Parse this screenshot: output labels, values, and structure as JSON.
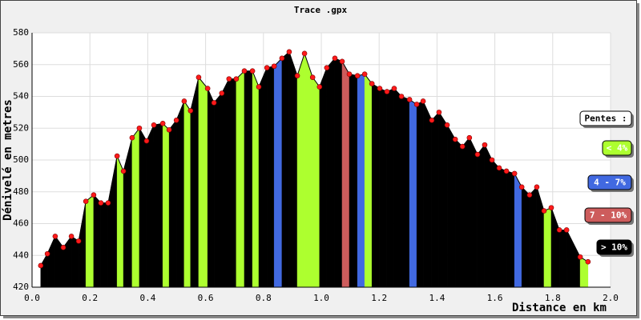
{
  "chart_data": {
    "type": "area",
    "title": "Trace .gpx",
    "x_label": "Distance en km",
    "y_label": "Dénivelé en metres",
    "xlim": [
      0,
      2.0
    ],
    "ylim": [
      420,
      580
    ],
    "xticks": [
      {
        "value": 0,
        "label": "0.0"
      },
      0.2,
      0.4,
      0.6,
      0.8,
      {
        "value": 1,
        "label": "1.0"
      },
      1.2,
      1.4,
      1.6,
      1.8,
      {
        "value": 2,
        "label": "2.0"
      }
    ],
    "yticks": [
      420,
      440,
      460,
      480,
      500,
      520,
      540,
      560,
      580
    ],
    "grid": true,
    "legend_position": "right",
    "marker_color": "#ff1a1a",
    "line_color": "#000000",
    "x": [
      0.03,
      0.053,
      0.08,
      0.108,
      0.136,
      0.161,
      0.186,
      0.213,
      0.238,
      0.263,
      0.294,
      0.316,
      0.346,
      0.371,
      0.396,
      0.421,
      0.452,
      0.474,
      0.499,
      0.526,
      0.548,
      0.576,
      0.607,
      0.629,
      0.656,
      0.681,
      0.706,
      0.734,
      0.762,
      0.784,
      0.812,
      0.837,
      0.864,
      0.889,
      0.917,
      0.942,
      0.97,
      0.994,
      1.019,
      1.047,
      1.072,
      1.097,
      1.125,
      1.15,
      1.175,
      1.202,
      1.227,
      1.252,
      1.277,
      1.305,
      1.33,
      1.352,
      1.382,
      1.407,
      1.435,
      1.463,
      1.488,
      1.512,
      1.54,
      1.565,
      1.59,
      1.615,
      1.64,
      1.668,
      1.693,
      1.72,
      1.745,
      1.77,
      1.795,
      1.823,
      1.848,
      1.895,
      1.922
    ],
    "values": [
      433.6,
      441,
      452,
      445,
      452,
      449,
      474,
      478,
      473,
      473,
      502.5,
      493,
      514,
      520,
      512,
      522,
      523,
      519,
      525,
      537,
      531,
      552,
      545,
      536,
      542,
      551,
      551,
      556,
      556,
      546,
      558,
      559,
      564,
      568,
      553,
      567,
      552,
      546,
      558,
      564,
      562,
      554,
      553,
      554,
      548,
      545,
      543,
      545,
      540,
      538,
      535,
      537,
      525,
      530,
      522,
      513,
      508.5,
      514,
      503.5,
      509.5,
      500,
      495,
      493,
      491.5,
      483,
      478,
      483,
      468,
      470,
      456,
      456,
      439,
      436
    ],
    "segment_colors": [
      "#000000",
      "#000000",
      "#000000",
      "#000000",
      "#000000",
      "#000000",
      "#adff2f",
      "#000000",
      "#000000",
      "#000000",
      "#adff2f",
      "#000000",
      "#adff2f",
      "#000000",
      "#000000",
      "#000000",
      "#adff2f",
      "#000000",
      "#000000",
      "#adff2f",
      "#000000",
      "#adff2f",
      "#000000",
      "#000000",
      "#000000",
      "#000000",
      "#adff2f",
      "#000000",
      "#adff2f",
      "#000000",
      "#000000",
      "#4169e1",
      "#000000",
      "#000000",
      "#adff2f",
      "#adff2f",
      "#adff2f",
      "#000000",
      "#000000",
      "#000000",
      "#cd5c5c",
      "#000000",
      "#4169e1",
      "#adff2f",
      "#000000",
      "#000000",
      "#000000",
      "#000000",
      "#000000",
      "#4169e1",
      "#000000",
      "#000000",
      "#000000",
      "#000000",
      "#000000",
      "#000000",
      "#000000",
      "#000000",
      "#000000",
      "#000000",
      "#000000",
      "#000000",
      "#000000",
      "#4169e1",
      "#000000",
      "#000000",
      "#000000",
      "#adff2f",
      "#000000",
      "#000000",
      "#000000",
      "#adff2f"
    ],
    "legend": {
      "title": "Pentes :",
      "items": [
        {
          "label": "< 4%",
          "color": "#adff2f"
        },
        {
          "label": "4 - 7%",
          "color": "#4169e1"
        },
        {
          "label": "7 - 10%",
          "color": "#cd5c5c"
        },
        {
          "label": "> 10%",
          "color": "#000000"
        }
      ]
    }
  }
}
